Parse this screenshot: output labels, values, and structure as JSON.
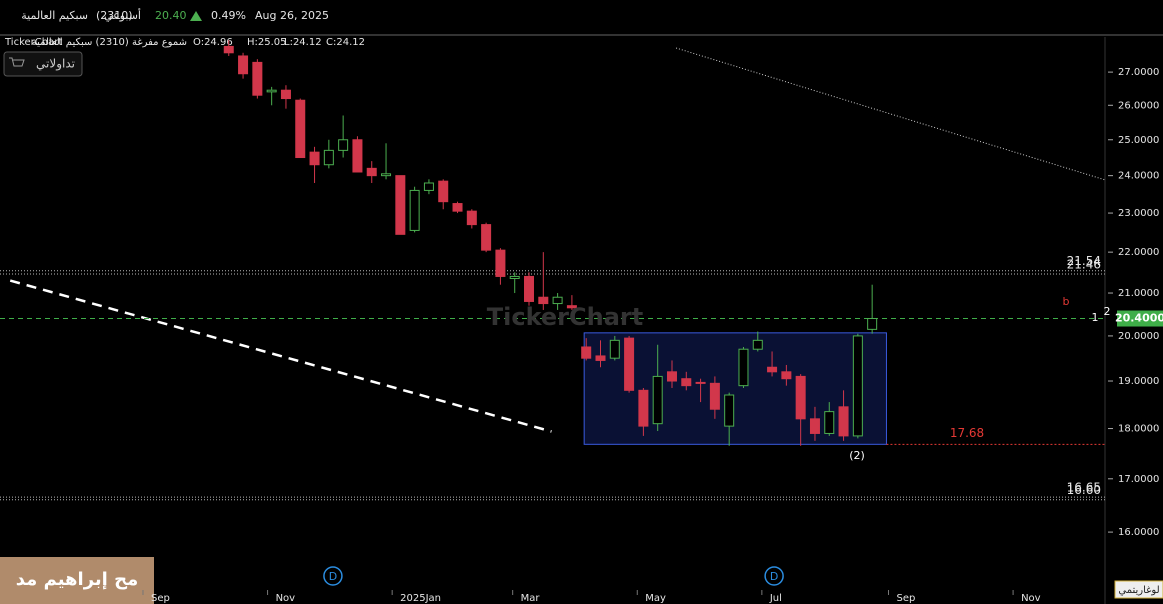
{
  "header": {
    "name": "سبكيم العالمية",
    "code": "(2310)",
    "period": "أسبوعي",
    "price": "20.40",
    "change": "0.49%",
    "date": "Aug 26, 2025"
  },
  "toolbar": {
    "brand": "TickerChart",
    "series_label": "شموع مفرغة (2310) سبكيم العالمية",
    "ohlc": [
      "O:24.96",
      "H:25.05",
      "L:24.12",
      "C:24.12"
    ],
    "button": "تداولاتي"
  },
  "watermark": "TickerChart",
  "signature": "مح إبراهيم مد",
  "chart_data": {
    "type": "candlestick",
    "x": [
      "2024-10-13",
      "2024-10-20",
      "2024-10-27",
      "2024-11-03",
      "2024-11-10",
      "2024-11-17",
      "2024-11-24",
      "2024-12-01",
      "2024-12-08",
      "2024-12-15",
      "2024-12-22",
      "2024-12-29",
      "2025-01-05",
      "2025-01-12",
      "2025-01-19",
      "2025-01-26",
      "2025-02-02",
      "2025-02-09",
      "2025-02-16",
      "2025-02-23",
      "2025-03-02",
      "2025-03-09",
      "2025-03-16",
      "2025-03-23",
      "2025-03-30",
      "2025-04-06",
      "2025-04-13",
      "2025-04-20",
      "2025-04-27",
      "2025-05-04",
      "2025-05-11",
      "2025-05-18",
      "2025-05-25",
      "2025-06-01",
      "2025-06-08",
      "2025-06-15",
      "2025-06-22",
      "2025-06-29",
      "2025-07-06",
      "2025-07-13",
      "2025-07-20",
      "2025-07-27",
      "2025-08-03",
      "2025-08-10",
      "2025-08-17",
      "2025-08-24"
    ],
    "open": [
      27.8,
      27.5,
      27.3,
      26.4,
      26.45,
      26.15,
      24.65,
      24.3,
      24.7,
      25.0,
      24.2,
      24.0,
      24.0,
      22.55,
      23.6,
      23.85,
      23.25,
      23.05,
      22.7,
      22.05,
      21.35,
      21.4,
      20.9,
      20.75,
      20.7,
      19.75,
      19.55,
      19.5,
      19.95,
      18.8,
      18.1,
      19.2,
      19.05,
      18.97,
      18.95,
      18.05,
      18.9,
      19.7,
      19.3,
      19.2,
      19.1,
      18.2,
      17.9,
      18.45,
      17.85,
      20.15
    ],
    "high": [
      28.0,
      27.6,
      27.4,
      26.55,
      26.6,
      26.2,
      24.8,
      25.0,
      25.7,
      25.1,
      24.4,
      24.9,
      24.0,
      23.7,
      23.9,
      23.9,
      23.3,
      23.1,
      22.75,
      22.1,
      21.5,
      21.5,
      22.0,
      21.0,
      20.95,
      19.95,
      19.9,
      20.0,
      20.0,
      18.85,
      19.8,
      19.45,
      19.2,
      19.05,
      19.1,
      18.75,
      19.75,
      20.1,
      19.65,
      19.35,
      19.15,
      18.45,
      18.55,
      18.8,
      20.05,
      21.2
    ],
    "low": [
      27.5,
      26.8,
      26.2,
      26.0,
      25.9,
      24.5,
      23.8,
      24.2,
      24.5,
      24.1,
      23.8,
      23.9,
      22.45,
      22.5,
      23.5,
      23.1,
      23.0,
      22.6,
      22.0,
      21.2,
      21.0,
      20.7,
      20.6,
      20.6,
      20.6,
      19.45,
      19.3,
      19.45,
      18.75,
      17.85,
      17.95,
      18.85,
      18.8,
      18.55,
      18.2,
      17.65,
      18.85,
      19.65,
      19.1,
      18.9,
      17.65,
      17.75,
      17.85,
      17.75,
      17.8,
      20.05
    ],
    "close": [
      27.6,
      26.95,
      26.3,
      26.45,
      26.2,
      24.5,
      24.3,
      24.7,
      25.0,
      24.1,
      24.0,
      24.05,
      22.45,
      23.6,
      23.8,
      23.3,
      23.05,
      22.7,
      22.05,
      21.4,
      21.4,
      20.8,
      20.75,
      20.9,
      20.65,
      19.5,
      19.45,
      19.9,
      18.8,
      18.05,
      19.1,
      19.0,
      18.9,
      18.95,
      18.4,
      18.7,
      19.7,
      19.9,
      19.2,
      19.05,
      18.2,
      17.9,
      18.35,
      17.85,
      20.0,
      20.4
    ],
    "up_color": "#4caf50",
    "down_color": "#d2374b",
    "xlim": [
      "2024-06-23",
      "2025-12-16"
    ],
    "xticks": [
      {
        "value": "2024-09-01",
        "label": "Sep"
      },
      {
        "value": "2024-11-01",
        "label": "Nov"
      },
      {
        "value": "2025-01-01",
        "label": "2025Jan"
      },
      {
        "value": "2025-03-01",
        "label": "Mar"
      },
      {
        "value": "2025-05-01",
        "label": "May"
      },
      {
        "value": "2025-07-01",
        "label": "Jul"
      },
      {
        "value": "2025-09-01",
        "label": "Sep"
      },
      {
        "value": "2025-11-01",
        "label": "Nov"
      }
    ],
    "ylim": [
      14.98,
      28.1
    ],
    "yticks": [
      {
        "value": 16,
        "label": "16.0000"
      },
      {
        "value": 17,
        "label": "17.0000"
      },
      {
        "value": 18,
        "label": "18.0000"
      },
      {
        "value": 19,
        "label": "19.0000"
      },
      {
        "value": 20,
        "label": "20.0000"
      },
      {
        "value": 21,
        "label": "21.0000"
      },
      {
        "value": 22,
        "label": "22.0000"
      },
      {
        "value": 23,
        "label": "23.0000"
      },
      {
        "value": 24,
        "label": "24.0000"
      },
      {
        "value": 25,
        "label": "25.0000"
      },
      {
        "value": 26,
        "label": "26.0000"
      },
      {
        "value": 27,
        "label": "27.0000"
      }
    ],
    "log_scale": true,
    "scale_label": "لوغاريتمي",
    "last_price": {
      "value": 20.4,
      "label": "20.4000"
    },
    "levels": [
      21.54,
      21.46,
      16.65,
      {
        "value": 16.6,
        "label": "16.60"
      }
    ],
    "support": {
      "value": 17.68,
      "color": "#e53935"
    },
    "box": {
      "x": [
        "2025-04-05",
        "2025-08-31"
      ],
      "y": [
        17.68,
        20.07
      ]
    },
    "trend_lines": [
      {
        "x": [
          "2024-06-28",
          "2025-03-20"
        ],
        "y": [
          21.3,
          17.94
        ],
        "style": "dashed"
      },
      {
        "x": [
          "2025-05-20",
          "2025-12-18"
        ],
        "y": [
          27.75,
          23.85
        ],
        "style": "dotted"
      }
    ],
    "events": [
      {
        "x": "2024-12-03",
        "label": "D"
      },
      {
        "x": "2025-07-07",
        "label": "D"
      }
    ],
    "wave_labels": [
      "(2)",
      "b",
      "1",
      "2"
    ]
  }
}
